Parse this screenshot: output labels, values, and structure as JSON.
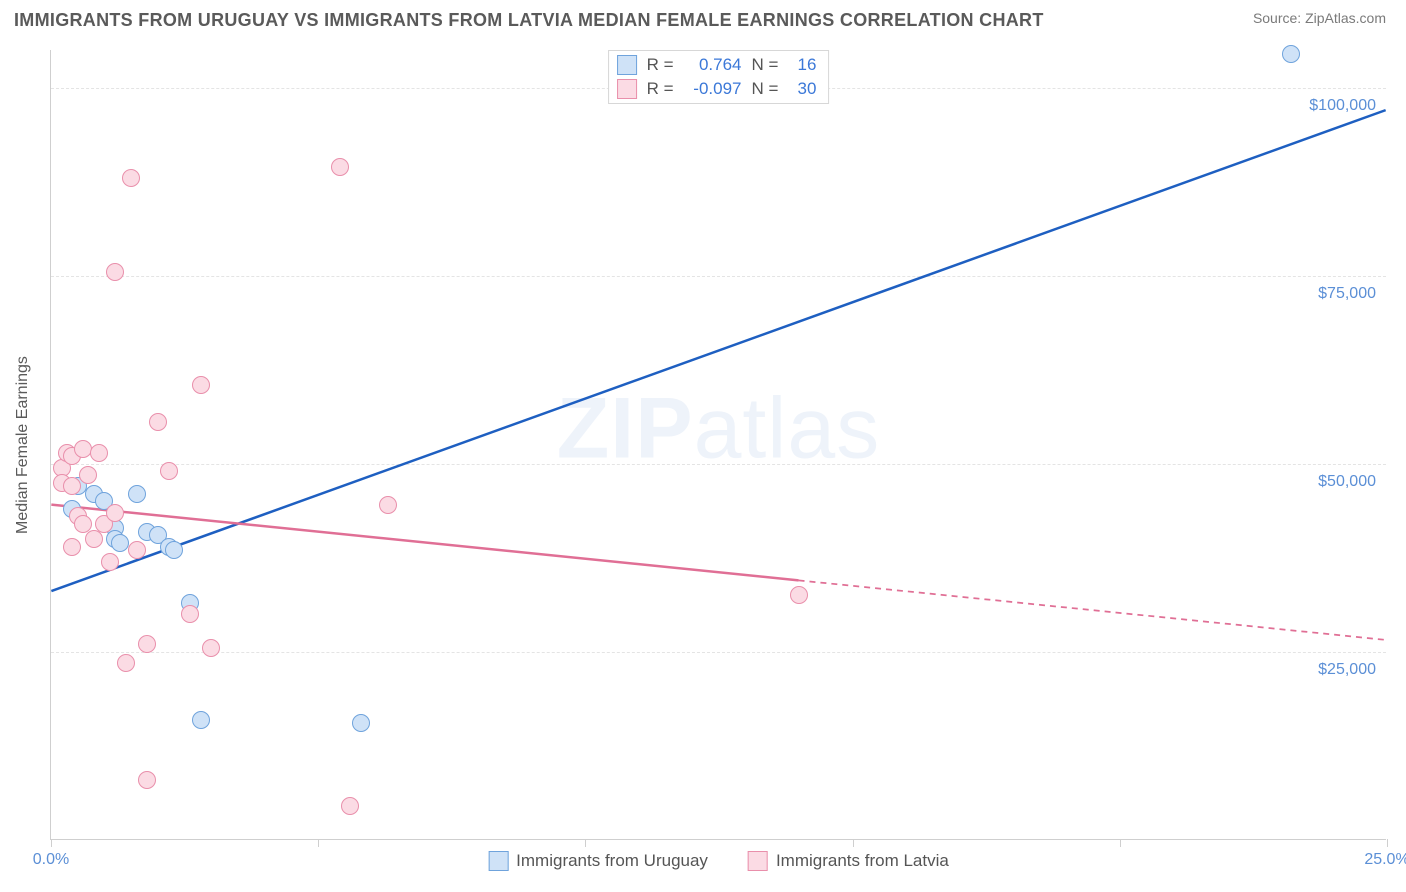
{
  "title": "IMMIGRANTS FROM URUGUAY VS IMMIGRANTS FROM LATVIA MEDIAN FEMALE EARNINGS CORRELATION CHART",
  "source": "Source: ZipAtlas.com",
  "watermark_a": "ZIP",
  "watermark_b": "atlas",
  "y_axis_label": "Median Female Earnings",
  "chart": {
    "type": "scatter-correlation",
    "background_color": "#ffffff",
    "grid_color": "#e4e4e4",
    "axis_color": "#cfcfcf",
    "x_min": 0.0,
    "x_max": 25.0,
    "y_min": 0,
    "y_max": 105000,
    "y_ticks": [
      25000,
      50000,
      75000,
      100000
    ],
    "y_tick_labels": [
      "$25,000",
      "$50,000",
      "$75,000",
      "$100,000"
    ],
    "x_ticks_minor": [
      0,
      5,
      10,
      15,
      20,
      25
    ],
    "x_tick_labels": {
      "0": "0.0%",
      "25": "25.0%"
    },
    "point_radius": 9,
    "point_stroke_width": 1.2,
    "line_width": 2.5,
    "dash_pattern": "6 5"
  },
  "series": [
    {
      "key": "uruguay",
      "label": "Immigrants from Uruguay",
      "fill": "#cfe2f7",
      "stroke": "#6fa3dc",
      "line_color": "#1e5fc1",
      "r_label": "R =",
      "r_value": "0.764",
      "n_label": "N =",
      "n_value": "16",
      "reg_line": {
        "x1": 0.0,
        "y1": 33000,
        "x2": 25.0,
        "y2": 97000,
        "solid_until_x": 25.0
      },
      "points": [
        [
          0.4,
          44000
        ],
        [
          0.5,
          47000
        ],
        [
          0.8,
          46000
        ],
        [
          1.0,
          45000
        ],
        [
          1.2,
          41500
        ],
        [
          1.2,
          40000
        ],
        [
          1.3,
          39500
        ],
        [
          1.6,
          46000
        ],
        [
          1.8,
          41000
        ],
        [
          2.0,
          40500
        ],
        [
          2.2,
          39000
        ],
        [
          2.3,
          38500
        ],
        [
          2.6,
          31500
        ],
        [
          2.8,
          16000
        ],
        [
          5.8,
          15500
        ],
        [
          23.2,
          104500
        ]
      ]
    },
    {
      "key": "latvia",
      "label": "Immigrants from Latvia",
      "fill": "#fbdbe4",
      "stroke": "#e98fab",
      "line_color": "#e06f95",
      "r_label": "R =",
      "r_value": "-0.097",
      "n_label": "N =",
      "n_value": "30",
      "reg_line": {
        "x1": 0.0,
        "y1": 44500,
        "x2": 25.0,
        "y2": 26500,
        "solid_until_x": 14.0
      },
      "points": [
        [
          0.2,
          49500
        ],
        [
          0.2,
          47500
        ],
        [
          0.3,
          51500
        ],
        [
          0.4,
          51000
        ],
        [
          0.4,
          47000
        ],
        [
          0.5,
          43000
        ],
        [
          0.6,
          52000
        ],
        [
          0.6,
          42000
        ],
        [
          0.7,
          48500
        ],
        [
          0.8,
          40000
        ],
        [
          0.9,
          51500
        ],
        [
          1.0,
          42000
        ],
        [
          1.1,
          37000
        ],
        [
          1.2,
          75500
        ],
        [
          1.2,
          43500
        ],
        [
          1.4,
          23500
        ],
        [
          1.5,
          88000
        ],
        [
          1.6,
          38500
        ],
        [
          1.8,
          26000
        ],
        [
          2.0,
          55500
        ],
        [
          2.2,
          49000
        ],
        [
          2.6,
          30000
        ],
        [
          2.8,
          60500
        ],
        [
          3.0,
          25500
        ],
        [
          5.4,
          89500
        ],
        [
          5.6,
          4500
        ],
        [
          6.3,
          44500
        ],
        [
          1.8,
          8000
        ],
        [
          14.0,
          32500
        ],
        [
          0.4,
          39000
        ]
      ]
    }
  ]
}
